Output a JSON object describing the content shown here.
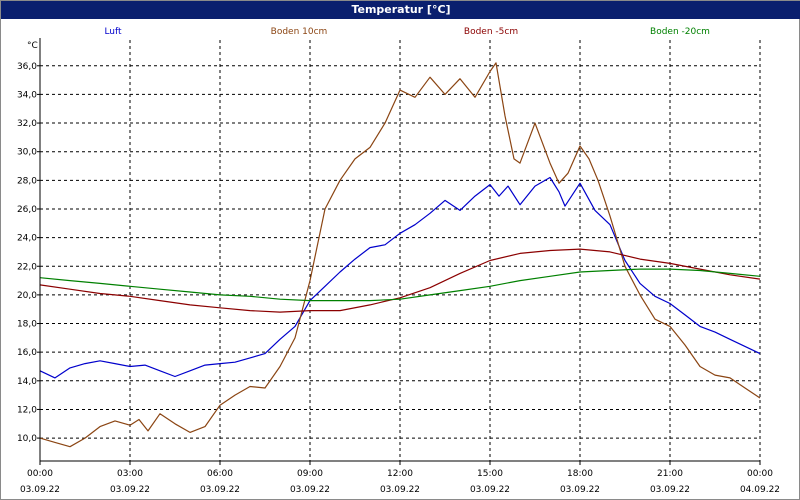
{
  "window": {
    "title": "Temperatur [°C]"
  },
  "chart_data": {
    "type": "line",
    "title": "Temperatur [°C]",
    "ylabel": "°C",
    "xlabel": "",
    "ylim": [
      8.4,
      37.8
    ],
    "yticks": [
      10.0,
      12.0,
      14.0,
      16.0,
      18.0,
      20.0,
      22.0,
      24.0,
      26.0,
      28.0,
      30.0,
      32.0,
      34.0,
      36.0
    ],
    "ytick_labels": [
      "10,0",
      "12,0",
      "14,0",
      "16,0",
      "18,0",
      "20,0",
      "22,0",
      "24,0",
      "26,0",
      "28,0",
      "30,0",
      "32,0",
      "34,0",
      "36,0"
    ],
    "xlim_hours": [
      0,
      24
    ],
    "xticks": [
      {
        "h": 0,
        "time": "00:00",
        "date": "03.09.22"
      },
      {
        "h": 3,
        "time": "03:00",
        "date": "03.09.22"
      },
      {
        "h": 6,
        "time": "06:00",
        "date": "03.09.22"
      },
      {
        "h": 9,
        "time": "09:00",
        "date": "03.09.22"
      },
      {
        "h": 12,
        "time": "12:00",
        "date": "03.09.22"
      },
      {
        "h": 15,
        "time": "15:00",
        "date": "03.09.22"
      },
      {
        "h": 18,
        "time": "18:00",
        "date": "03.09.22"
      },
      {
        "h": 21,
        "time": "21:00",
        "date": "03.09.22"
      },
      {
        "h": 24,
        "time": "00:00",
        "date": "04.09.22"
      }
    ],
    "grid": true,
    "legend_position": "top",
    "series": [
      {
        "name": "Luft",
        "color": "#0000cc",
        "points": [
          [
            0,
            14.7
          ],
          [
            0.5,
            14.2
          ],
          [
            1,
            14.9
          ],
          [
            1.5,
            15.2
          ],
          [
            2,
            15.4
          ],
          [
            2.5,
            15.2
          ],
          [
            3,
            15.0
          ],
          [
            3.5,
            15.1
          ],
          [
            4,
            14.7
          ],
          [
            4.5,
            14.3
          ],
          [
            5,
            14.7
          ],
          [
            5.5,
            15.1
          ],
          [
            6,
            15.2
          ],
          [
            6.5,
            15.3
          ],
          [
            7,
            15.6
          ],
          [
            7.5,
            15.9
          ],
          [
            8,
            16.9
          ],
          [
            8.5,
            17.8
          ],
          [
            9,
            19.6
          ],
          [
            9.5,
            20.6
          ],
          [
            10,
            21.6
          ],
          [
            10.5,
            22.5
          ],
          [
            11,
            23.3
          ],
          [
            11.5,
            23.5
          ],
          [
            12,
            24.3
          ],
          [
            12.5,
            24.9
          ],
          [
            13,
            25.7
          ],
          [
            13.5,
            26.6
          ],
          [
            14,
            25.9
          ],
          [
            14.5,
            26.9
          ],
          [
            15,
            27.7
          ],
          [
            15.3,
            26.9
          ],
          [
            15.6,
            27.6
          ],
          [
            16,
            26.3
          ],
          [
            16.5,
            27.6
          ],
          [
            17,
            28.2
          ],
          [
            17.3,
            27.2
          ],
          [
            17.5,
            26.2
          ],
          [
            18,
            27.8
          ],
          [
            18.5,
            25.9
          ],
          [
            19,
            24.9
          ],
          [
            19.5,
            22.4
          ],
          [
            20,
            20.8
          ],
          [
            20.5,
            19.9
          ],
          [
            21,
            19.4
          ],
          [
            21.5,
            18.6
          ],
          [
            22,
            17.8
          ],
          [
            22.5,
            17.4
          ],
          [
            23,
            16.9
          ],
          [
            23.5,
            16.4
          ],
          [
            24,
            15.9
          ]
        ]
      },
      {
        "name": "Boden 10cm",
        "color": "#8b4513",
        "points": [
          [
            0,
            10.0
          ],
          [
            0.5,
            9.7
          ],
          [
            1,
            9.4
          ],
          [
            1.5,
            10.0
          ],
          [
            2,
            10.8
          ],
          [
            2.5,
            11.2
          ],
          [
            3,
            10.9
          ],
          [
            3.3,
            11.3
          ],
          [
            3.6,
            10.5
          ],
          [
            4,
            11.7
          ],
          [
            4.5,
            11.0
          ],
          [
            5,
            10.4
          ],
          [
            5.5,
            10.8
          ],
          [
            6,
            12.3
          ],
          [
            6.5,
            13.0
          ],
          [
            7,
            13.6
          ],
          [
            7.5,
            13.5
          ],
          [
            8,
            15.0
          ],
          [
            8.5,
            17.0
          ],
          [
            9,
            21.0
          ],
          [
            9.5,
            26.0
          ],
          [
            10,
            28.0
          ],
          [
            10.5,
            29.5
          ],
          [
            11,
            30.3
          ],
          [
            11.5,
            32.0
          ],
          [
            12,
            34.3
          ],
          [
            12.5,
            33.8
          ],
          [
            13,
            35.2
          ],
          [
            13.5,
            34.0
          ],
          [
            14,
            35.1
          ],
          [
            14.5,
            33.8
          ],
          [
            15,
            35.6
          ],
          [
            15.2,
            36.2
          ],
          [
            15.5,
            32.5
          ],
          [
            15.8,
            29.5
          ],
          [
            16,
            29.2
          ],
          [
            16.5,
            32.0
          ],
          [
            17,
            29.2
          ],
          [
            17.3,
            27.8
          ],
          [
            17.6,
            28.5
          ],
          [
            18,
            30.4
          ],
          [
            18.3,
            29.5
          ],
          [
            18.6,
            28.0
          ],
          [
            19,
            25.5
          ],
          [
            19.5,
            22.0
          ],
          [
            20,
            20.0
          ],
          [
            20.5,
            18.3
          ],
          [
            21,
            17.8
          ],
          [
            21.5,
            16.5
          ],
          [
            22,
            15.0
          ],
          [
            22.5,
            14.4
          ],
          [
            23,
            14.2
          ],
          [
            23.5,
            13.5
          ],
          [
            24,
            12.8
          ]
        ]
      },
      {
        "name": "Boden -5cm",
        "color": "#8b0000",
        "points": [
          [
            0,
            20.7
          ],
          [
            1,
            20.4
          ],
          [
            2,
            20.1
          ],
          [
            3,
            19.9
          ],
          [
            4,
            19.6
          ],
          [
            5,
            19.3
          ],
          [
            6,
            19.1
          ],
          [
            7,
            18.9
          ],
          [
            8,
            18.8
          ],
          [
            9,
            18.9
          ],
          [
            10,
            18.9
          ],
          [
            11,
            19.3
          ],
          [
            12,
            19.8
          ],
          [
            13,
            20.5
          ],
          [
            14,
            21.5
          ],
          [
            15,
            22.4
          ],
          [
            16,
            22.9
          ],
          [
            17,
            23.1
          ],
          [
            18,
            23.2
          ],
          [
            19,
            23.0
          ],
          [
            20,
            22.5
          ],
          [
            21,
            22.2
          ],
          [
            22,
            21.8
          ],
          [
            23,
            21.4
          ],
          [
            24,
            21.1
          ]
        ]
      },
      {
        "name": "Boden -20cm",
        "color": "#008000",
        "points": [
          [
            0,
            21.2
          ],
          [
            1,
            21.0
          ],
          [
            2,
            20.8
          ],
          [
            3,
            20.6
          ],
          [
            4,
            20.4
          ],
          [
            5,
            20.2
          ],
          [
            6,
            20.0
          ],
          [
            7,
            19.9
          ],
          [
            8,
            19.7
          ],
          [
            9,
            19.6
          ],
          [
            10,
            19.6
          ],
          [
            11,
            19.6
          ],
          [
            12,
            19.7
          ],
          [
            13,
            20.0
          ],
          [
            14,
            20.3
          ],
          [
            15,
            20.6
          ],
          [
            16,
            21.0
          ],
          [
            17,
            21.3
          ],
          [
            18,
            21.6
          ],
          [
            19,
            21.7
          ],
          [
            20,
            21.8
          ],
          [
            21,
            21.8
          ],
          [
            22,
            21.7
          ],
          [
            23,
            21.5
          ],
          [
            24,
            21.3
          ]
        ]
      }
    ]
  }
}
